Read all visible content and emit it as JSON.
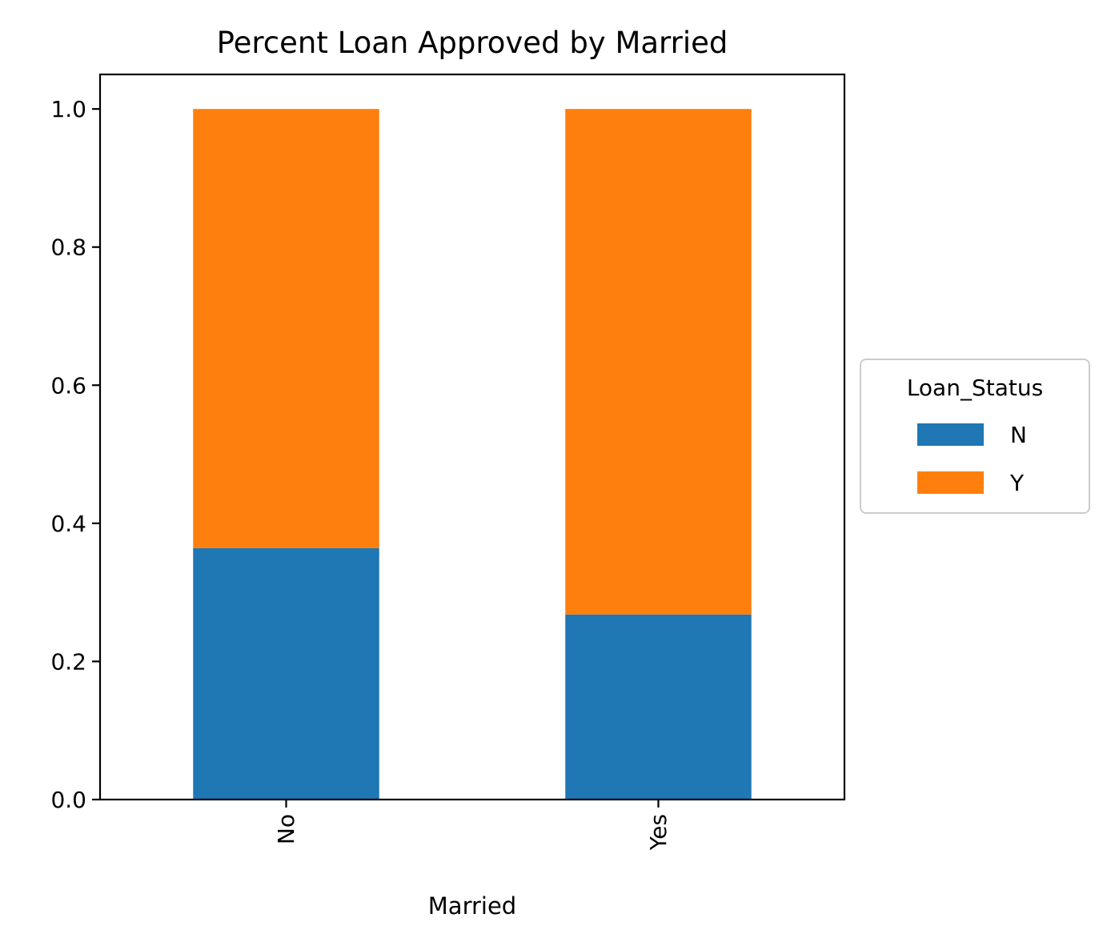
{
  "chart_data": {
    "type": "bar",
    "stacked": true,
    "title": "Percent Loan Approved by Married",
    "xlabel": "Married",
    "ylabel": "",
    "categories": [
      "No",
      "Yes"
    ],
    "series": [
      {
        "name": "N",
        "values": [
          0.364,
          0.268
        ],
        "color": "#1f77b4"
      },
      {
        "name": "Y",
        "values": [
          0.636,
          0.732
        ],
        "color": "#ff7f0e"
      }
    ],
    "ylim": [
      0,
      1.05
    ],
    "yticks": [
      0.0,
      0.2,
      0.4,
      0.6,
      0.8,
      1.0
    ],
    "ytick_labels": [
      "0.0",
      "0.2",
      "0.4",
      "0.6",
      "0.8",
      "1.0"
    ],
    "grid": false,
    "legend": {
      "title": "Loan_Status",
      "placement": "center-right-outside"
    }
  }
}
